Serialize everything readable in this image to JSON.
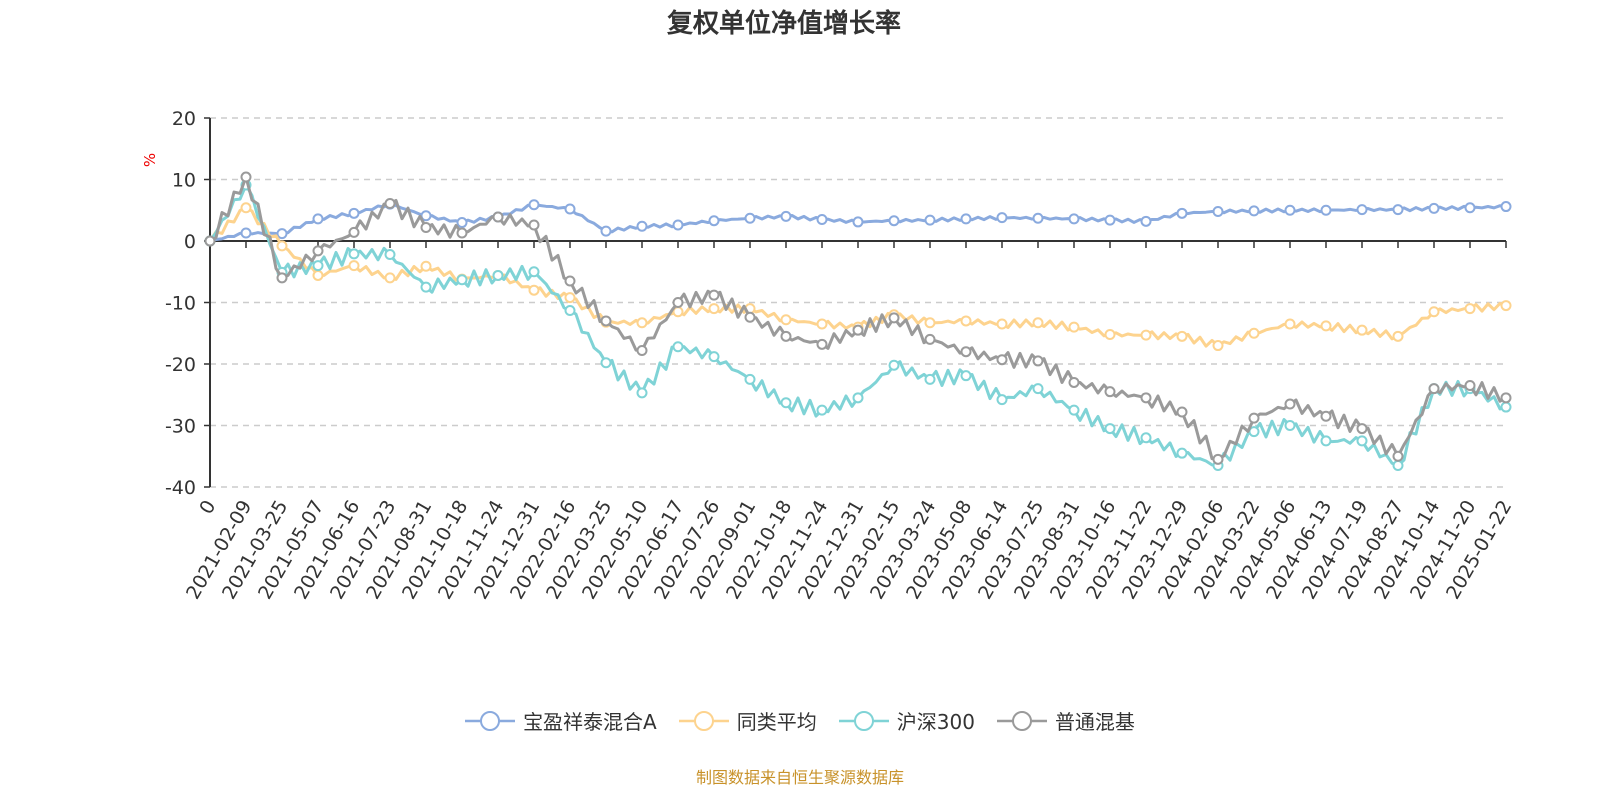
{
  "chart_data": {
    "type": "line",
    "title": "复权单位净值增长率",
    "ylabel": "%",
    "ylim": [
      -40,
      20
    ],
    "yticks": [
      20,
      10,
      0,
      -10,
      -20,
      -30,
      -40
    ],
    "grid": true,
    "legend_position": "bottom",
    "categories": [
      "0",
      "2021-02-09",
      "2021-03-25",
      "2021-05-07",
      "2021-06-16",
      "2021-07-23",
      "2021-08-31",
      "2021-10-18",
      "2021-11-24",
      "2021-12-31",
      "2022-02-16",
      "2022-03-25",
      "2022-05-10",
      "2022-06-17",
      "2022-07-26",
      "2022-09-01",
      "2022-10-18",
      "2022-11-24",
      "2022-12-31",
      "2023-02-15",
      "2023-03-24",
      "2023-05-08",
      "2023-06-14",
      "2023-07-25",
      "2023-08-31",
      "2023-10-16",
      "2023-11-22",
      "2023-12-29",
      "2024-02-06",
      "2024-03-22",
      "2024-05-06",
      "2024-06-13",
      "2024-07-19",
      "2024-08-27",
      "2024-10-14",
      "2024-11-20",
      "2025-01-22"
    ],
    "series": [
      {
        "name": "宝盈祥泰混合A",
        "color": "#8aaade",
        "values": [
          0,
          1.3,
          1.2,
          3.6,
          4.5,
          6.0,
          4.1,
          3.0,
          3.9,
          5.9,
          5.2,
          1.6,
          2.4,
          2.6,
          3.3,
          3.7,
          4.0,
          3.5,
          3.1,
          3.3,
          3.4,
          3.6,
          3.8,
          3.7,
          3.6,
          3.4,
          3.2,
          4.5,
          4.8,
          4.9,
          5.0,
          5.0,
          5.1,
          5.1,
          5.3,
          5.4,
          5.6
        ]
      },
      {
        "name": "同类平均",
        "color": "#fdd38e",
        "values": [
          0,
          5.4,
          -0.8,
          -5.6,
          -4.0,
          -6.0,
          -4.1,
          -6.2,
          -5.6,
          -8.0,
          -9.2,
          -13.2,
          -13.3,
          -11.5,
          -11.0,
          -11.0,
          -12.8,
          -13.5,
          -14.0,
          -12.0,
          -13.3,
          -13.0,
          -13.5,
          -13.3,
          -14.0,
          -15.2,
          -15.3,
          -15.5,
          -17.0,
          -15.0,
          -13.5,
          -13.8,
          -14.5,
          -15.5,
          -11.5,
          -11.0,
          -10.5
        ]
      },
      {
        "name": "沪深300",
        "color": "#7fd3d6",
        "values": [
          0,
          9.1,
          -5.1,
          -4.0,
          -2.1,
          -2.2,
          -7.5,
          -6.3,
          -5.6,
          -5.0,
          -11.3,
          -19.8,
          -24.7,
          -17.2,
          -18.8,
          -22.5,
          -26.3,
          -27.5,
          -25.5,
          -20.2,
          -22.5,
          -21.9,
          -25.8,
          -24.0,
          -27.5,
          -30.5,
          -32.0,
          -34.5,
          -36.5,
          -31.0,
          -30.0,
          -32.5,
          -32.5,
          -36.5,
          -24.0,
          -24.0,
          -27.0
        ]
      },
      {
        "name": "普通混基",
        "color": "#9a9a9a",
        "values": [
          0,
          10.4,
          -6.0,
          -1.6,
          1.4,
          6.1,
          2.2,
          1.3,
          3.9,
          2.6,
          -6.5,
          -13.0,
          -17.8,
          -10.0,
          -8.8,
          -12.4,
          -15.5,
          -16.8,
          -14.5,
          -12.5,
          -16.0,
          -18.0,
          -19.3,
          -19.5,
          -23.0,
          -24.5,
          -25.5,
          -27.8,
          -35.5,
          -28.8,
          -26.5,
          -28.5,
          -30.5,
          -35.0,
          -24.0,
          -23.5,
          -25.5
        ]
      }
    ]
  },
  "footer": "制图数据来自恒生聚源数据库"
}
